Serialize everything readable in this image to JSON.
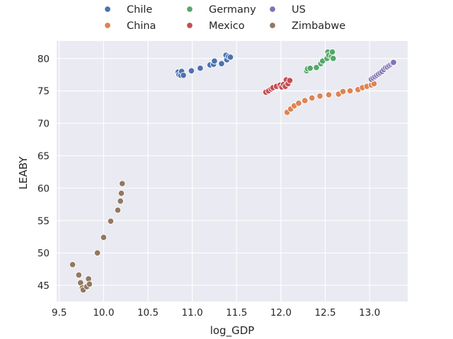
{
  "chart_data": {
    "type": "scatter",
    "title": "",
    "xlabel": "log_GDP",
    "ylabel": "LEABY",
    "xlim": [
      9.47,
      13.43
    ],
    "ylim": [
      42.5,
      82.7
    ],
    "xticks": [
      "9.5",
      "10.0",
      "10.5",
      "11.0",
      "11.5",
      "12.0",
      "12.5",
      "13.0"
    ],
    "xtick_values": [
      9.5,
      10.0,
      10.5,
      11.0,
      11.5,
      12.0,
      12.5,
      13.0
    ],
    "yticks": [
      "45",
      "50",
      "55",
      "60",
      "65",
      "70",
      "75",
      "80"
    ],
    "ytick_values": [
      45,
      50,
      55,
      60,
      65,
      70,
      75,
      80
    ],
    "grid": true,
    "background": "#eaeaf2",
    "legend_placement": "top-center",
    "series": [
      {
        "name": "Chile",
        "color": "#4c72b0",
        "points": [
          [
            10.84,
            77.9
          ],
          [
            10.85,
            77.5
          ],
          [
            10.87,
            77.4
          ],
          [
            10.88,
            78.0
          ],
          [
            10.9,
            77.4
          ],
          [
            10.99,
            78.1
          ],
          [
            11.09,
            78.5
          ],
          [
            11.2,
            79.0
          ],
          [
            11.24,
            79.1
          ],
          [
            11.25,
            79.6
          ],
          [
            11.33,
            79.2
          ],
          [
            11.38,
            80.5
          ],
          [
            11.39,
            79.8
          ],
          [
            11.41,
            80.3
          ],
          [
            11.43,
            80.2
          ]
        ]
      },
      {
        "name": "China",
        "color": "#dd8452",
        "points": [
          [
            12.07,
            71.7
          ],
          [
            12.11,
            72.2
          ],
          [
            12.15,
            72.7
          ],
          [
            12.2,
            73.1
          ],
          [
            12.27,
            73.5
          ],
          [
            12.35,
            73.9
          ],
          [
            12.44,
            74.2
          ],
          [
            12.54,
            74.4
          ],
          [
            12.65,
            74.5
          ],
          [
            12.7,
            74.9
          ],
          [
            12.78,
            75.0
          ],
          [
            12.87,
            75.2
          ],
          [
            12.92,
            75.5
          ],
          [
            12.97,
            75.7
          ],
          [
            13.02,
            75.9
          ],
          [
            13.05,
            76.1
          ]
        ]
      },
      {
        "name": "Germany",
        "color": "#55a868",
        "points": [
          [
            12.29,
            78.1
          ],
          [
            12.3,
            78.4
          ],
          [
            12.33,
            78.5
          ],
          [
            12.4,
            78.6
          ],
          [
            12.45,
            79.2
          ],
          [
            12.47,
            79.6
          ],
          [
            12.52,
            80.0
          ],
          [
            12.53,
            81.0
          ],
          [
            12.54,
            80.5
          ],
          [
            12.57,
            80.3
          ],
          [
            12.58,
            81.0
          ],
          [
            12.59,
            80.0
          ]
        ]
      },
      {
        "name": "Mexico",
        "color": "#c44e52",
        "points": [
          [
            11.83,
            74.8
          ],
          [
            11.86,
            75.0
          ],
          [
            11.89,
            75.3
          ],
          [
            11.91,
            75.5
          ],
          [
            11.95,
            75.7
          ],
          [
            11.99,
            75.9
          ],
          [
            12.01,
            75.6
          ],
          [
            12.03,
            76.0
          ],
          [
            12.05,
            75.7
          ],
          [
            12.06,
            76.7
          ],
          [
            12.08,
            76.1
          ],
          [
            12.1,
            76.6
          ]
        ]
      },
      {
        "name": "US",
        "color": "#8172b3",
        "points": [
          [
            13.02,
            76.8
          ],
          [
            13.04,
            77.0
          ],
          [
            13.06,
            77.2
          ],
          [
            13.08,
            77.4
          ],
          [
            13.1,
            77.6
          ],
          [
            13.12,
            77.8
          ],
          [
            13.14,
            78.0
          ],
          [
            13.16,
            78.3
          ],
          [
            13.18,
            78.6
          ],
          [
            13.2,
            78.7
          ],
          [
            13.22,
            78.9
          ],
          [
            13.24,
            79.1
          ],
          [
            13.26,
            79.3
          ],
          [
            13.27,
            79.4
          ]
        ]
      },
      {
        "name": "Zimbabwe",
        "color": "#937860",
        "points": [
          [
            9.65,
            48.2
          ],
          [
            9.72,
            46.6
          ],
          [
            9.74,
            45.4
          ],
          [
            9.76,
            44.6
          ],
          [
            9.77,
            44.3
          ],
          [
            9.81,
            44.8
          ],
          [
            9.83,
            46.0
          ],
          [
            9.84,
            45.2
          ],
          [
            9.93,
            50.0
          ],
          [
            10.0,
            52.4
          ],
          [
            10.08,
            54.9
          ],
          [
            10.16,
            56.6
          ],
          [
            10.19,
            58.0
          ],
          [
            10.2,
            59.2
          ],
          [
            10.21,
            60.7
          ]
        ]
      }
    ]
  }
}
